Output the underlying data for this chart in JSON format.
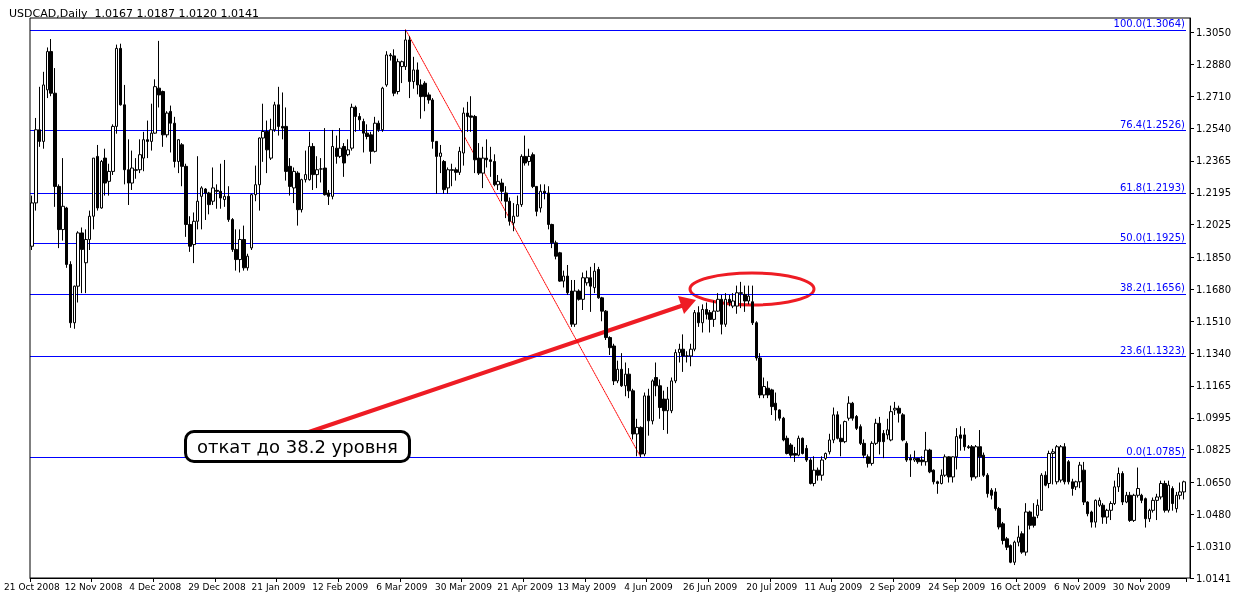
{
  "chart_data": {
    "type": "candlestick",
    "title": "USDCAD,Daily  1.0167 1.0187 1.0120 1.0141",
    "color": "#000000",
    "categories": [
      "21 Oct 2008",
      null,
      null,
      null,
      null,
      null,
      null,
      null,
      null,
      null,
      null,
      null,
      null,
      null,
      null,
      null,
      "12 Nov 2008",
      null,
      null,
      null,
      null,
      null,
      null,
      null,
      null,
      null,
      null,
      null,
      null,
      null,
      null,
      null,
      "4 Dec 2008",
      null,
      null,
      null,
      null,
      null,
      null,
      null,
      null,
      null,
      null,
      null,
      null,
      null,
      null,
      null,
      "29 Dec 2008",
      null,
      null,
      null,
      null,
      null,
      null,
      null,
      null,
      null,
      null,
      null,
      null,
      null,
      null,
      null,
      "21 Jan 2009",
      null,
      null,
      null,
      null,
      null,
      null,
      null,
      null,
      null,
      null,
      null,
      null,
      null,
      null,
      null,
      "12 Feb 2009",
      null,
      null,
      null,
      null,
      null,
      null,
      null,
      null,
      null,
      null,
      null,
      null,
      null,
      null,
      null,
      "6 Mar 2009",
      null,
      null,
      null,
      null,
      null,
      null,
      null,
      null,
      null,
      null,
      null,
      null,
      null,
      null,
      null,
      "30 Mar 2009",
      null,
      null,
      null,
      null,
      null,
      null,
      null,
      null,
      null,
      null,
      null,
      null,
      null,
      null,
      null,
      "21 Apr 2009",
      null,
      null,
      null,
      null,
      null,
      null,
      null,
      null,
      null,
      null,
      null,
      null,
      null,
      null,
      null,
      "13 May 2009",
      null,
      null,
      null,
      null,
      null,
      null,
      null,
      null,
      null,
      null,
      null,
      null,
      null,
      null,
      null,
      "4 Jun 2009",
      null,
      null,
      null,
      null,
      null,
      null,
      null,
      null,
      null,
      null,
      null,
      null,
      null,
      null,
      null,
      "26 Jun 2009",
      null,
      null,
      null,
      null,
      null,
      null,
      null,
      null,
      null,
      null,
      null,
      null,
      null,
      null,
      null,
      "20 Jul 2009",
      null,
      null,
      null,
      null,
      null,
      null,
      null,
      null,
      null,
      null,
      null,
      null,
      null,
      null,
      null,
      "11 Aug 2009",
      null,
      null,
      null,
      null,
      null,
      null,
      null,
      null,
      null,
      null,
      null,
      null,
      null,
      null,
      null,
      "2 Sep 2009",
      null,
      null,
      null,
      null,
      null,
      null,
      null,
      null,
      null,
      null,
      null,
      null,
      null,
      null,
      null,
      "24 Sep 2009",
      null,
      null,
      null,
      null,
      null,
      null,
      null,
      null,
      null,
      null,
      null,
      null,
      null,
      null,
      null,
      "16 Oct 2009",
      null,
      null,
      null,
      null,
      null,
      null,
      null,
      null,
      null,
      null,
      null,
      null,
      null,
      null,
      null,
      "6 Nov 2009",
      null,
      null,
      null,
      null,
      null,
      null,
      null,
      null,
      null,
      null,
      null,
      null,
      null,
      null,
      null,
      "30 Nov 2009",
      null,
      null,
      null,
      null,
      null,
      null,
      null,
      null,
      null,
      null,
      null
    ],
    "ohlc": [
      [
        1.191,
        1.218,
        1.189,
        1.2141
      ],
      [
        1.2141,
        1.2594,
        1.21,
        1.2531
      ],
      [
        1.2531,
        1.276,
        1.244,
        1.2469
      ],
      [
        1.2469,
        1.284,
        1.243,
        1.277
      ],
      [
        1.2744,
        1.297,
        1.27,
        1.2948
      ],
      [
        1.2948,
        1.3015,
        1.271,
        1.2726
      ],
      [
        1.2726,
        1.286,
        1.212,
        1.2229
      ],
      [
        1.2229,
        1.224,
        1.19,
        1.1999
      ],
      [
        1.1999,
        1.238,
        1.194,
        1.2123
      ],
      [
        1.2114,
        1.212,
        1.1795,
        1.1813
      ],
      [
        1.1813,
        1.183,
        1.1475,
        1.1502
      ],
      [
        1.1502,
        1.17,
        1.147,
        1.1697
      ],
      [
        1.1697,
        1.199,
        1.161,
        1.1981
      ],
      [
        1.1981,
        1.201,
        1.166,
        1.1893
      ],
      [
        1.1822,
        1.2,
        1.166,
        1.1946
      ],
      [
        1.1946,
        1.21,
        1.189,
        1.207
      ],
      [
        1.207,
        1.238,
        1.2,
        1.238
      ],
      [
        1.2389,
        1.245,
        1.21,
        1.2114
      ],
      [
        1.2114,
        1.237,
        1.211,
        1.2362
      ],
      [
        1.238,
        1.243,
        1.218,
        1.2247
      ],
      [
        1.2256,
        1.235,
        1.218,
        1.2309
      ],
      [
        1.2309,
        1.256,
        1.229,
        1.2549
      ],
      [
        1.2549,
        1.2985,
        1.251,
        1.2965
      ],
      [
        1.2965,
        1.299,
        1.266,
        1.2664
      ],
      [
        1.2664,
        1.277,
        1.224,
        1.2318
      ],
      [
        1.2318,
        1.248,
        1.213,
        1.2247
      ],
      [
        1.2247,
        1.242,
        1.221,
        1.2327
      ],
      [
        1.2318,
        1.238,
        1.227,
        1.2315
      ],
      [
        1.2318,
        1.248,
        1.23,
        1.2398
      ],
      [
        1.238,
        1.252,
        1.231,
        1.2478
      ],
      [
        1.2478,
        1.258,
        1.238,
        1.2469
      ],
      [
        1.2469,
        1.267,
        1.242,
        1.2513
      ],
      [
        1.2513,
        1.28,
        1.251,
        1.2761
      ],
      [
        1.2753,
        1.3005,
        1.265,
        1.2717
      ],
      [
        1.2735,
        1.274,
        1.244,
        1.2504
      ],
      [
        1.2504,
        1.263,
        1.249,
        1.262
      ],
      [
        1.2629,
        1.266,
        1.241,
        1.2566
      ],
      [
        1.2566,
        1.26,
        1.233,
        1.2362
      ],
      [
        1.2362,
        1.248,
        1.23,
        1.2478
      ],
      [
        1.2451,
        1.246,
        1.223,
        1.2336
      ],
      [
        1.2336,
        1.235,
        1.196,
        1.2026
      ],
      [
        1.2026,
        1.207,
        1.188,
        1.191
      ],
      [
        1.1919,
        1.209,
        1.182,
        1.2043
      ],
      [
        1.2043,
        1.239,
        1.2,
        1.215
      ],
      [
        1.2176,
        1.223,
        1.2,
        1.2221
      ],
      [
        1.2215,
        1.222,
        1.205,
        1.2194
      ],
      [
        1.2194,
        1.22,
        1.208,
        1.2132
      ],
      [
        1.215,
        1.233,
        1.213,
        1.2221
      ],
      [
        1.2208,
        1.224,
        1.211,
        1.2203
      ],
      [
        1.2203,
        1.235,
        1.211,
        1.2167
      ],
      [
        1.2159,
        1.237,
        1.212,
        1.2176
      ],
      [
        1.2176,
        1.223,
        1.204,
        1.2052
      ],
      [
        1.2052,
        1.206,
        1.188,
        1.1893
      ],
      [
        1.1893,
        1.2,
        1.178,
        1.1839
      ],
      [
        1.1839,
        1.2,
        1.177,
        1.1946
      ],
      [
        1.1946,
        1.202,
        1.178,
        1.1795
      ],
      [
        1.1795,
        1.187,
        1.178,
        1.1857
      ],
      [
        1.1901,
        1.219,
        1.189,
        1.2185
      ],
      [
        1.2185,
        1.234,
        1.215,
        1.2238
      ],
      [
        1.2238,
        1.249,
        1.21,
        1.2487
      ],
      [
        1.2487,
        1.267,
        1.236,
        1.2522
      ],
      [
        1.2522,
        1.258,
        1.23,
        1.2424
      ],
      [
        1.238,
        1.259,
        1.237,
        1.2531
      ],
      [
        1.2531,
        1.268,
        1.252,
        1.2664
      ],
      [
        1.2664,
        1.276,
        1.25,
        1.2549
      ],
      [
        1.2549,
        1.273,
        1.248,
        1.254
      ],
      [
        1.2549,
        1.265,
        1.226,
        1.2309
      ],
      [
        1.2336,
        1.238,
        1.218,
        1.2229
      ],
      [
        1.2221,
        1.233,
        1.214,
        1.2309
      ],
      [
        1.23,
        1.231,
        1.202,
        1.2105
      ],
      [
        1.2105,
        1.227,
        1.209,
        1.2265
      ],
      [
        1.2265,
        1.242,
        1.225,
        1.2292
      ],
      [
        1.2265,
        1.252,
        1.226,
        1.2442
      ],
      [
        1.2442,
        1.246,
        1.221,
        1.2292
      ],
      [
        1.2292,
        1.239,
        1.222,
        1.2318
      ],
      [
        1.2322,
        1.238,
        1.225,
        1.2322
      ],
      [
        1.2327,
        1.254,
        1.218,
        1.2185
      ],
      [
        1.2194,
        1.221,
        1.213,
        1.2176
      ],
      [
        1.2176,
        1.253,
        1.216,
        1.2442
      ],
      [
        1.2433,
        1.25,
        1.235,
        1.2389
      ],
      [
        1.2389,
        1.254,
        1.238,
        1.2433
      ],
      [
        1.2442,
        1.246,
        1.228,
        1.2354
      ],
      [
        1.2398,
        1.248,
        1.239,
        1.2424
      ],
      [
        1.2433,
        1.267,
        1.242,
        1.2651
      ],
      [
        1.2651,
        1.266,
        1.252,
        1.2602
      ],
      [
        1.2602,
        1.262,
        1.253,
        1.2584
      ],
      [
        1.2575,
        1.259,
        1.241,
        1.2513
      ],
      [
        1.2513,
        1.256,
        1.248,
        1.2495
      ],
      [
        1.2504,
        1.252,
        1.235,
        1.2416
      ],
      [
        1.2416,
        1.26,
        1.241,
        1.2566
      ],
      [
        1.2566,
        1.258,
        1.252,
        1.2531
      ],
      [
        1.2531,
        1.276,
        1.252,
        1.2753
      ],
      [
        1.277,
        1.295,
        1.276,
        1.293
      ],
      [
        1.293,
        1.294,
        1.29,
        1.2925
      ],
      [
        1.2925,
        1.296,
        1.271,
        1.2726
      ],
      [
        1.2735,
        1.291,
        1.272,
        1.2894
      ],
      [
        1.2868,
        1.29,
        1.278,
        1.2894
      ],
      [
        1.2868,
        1.3064,
        1.285,
        1.301
      ],
      [
        1.301,
        1.303,
        1.27,
        1.2788
      ],
      [
        1.2788,
        1.292,
        1.275,
        1.285
      ],
      [
        1.285,
        1.289,
        1.272,
        1.277
      ],
      [
        1.277,
        1.28,
        1.259,
        1.2708
      ],
      [
        1.2779,
        1.279,
        1.263,
        1.2708
      ],
      [
        1.2717,
        1.273,
        1.267,
        1.269
      ],
      [
        1.269,
        1.27,
        1.243,
        1.2469
      ],
      [
        1.2469,
        1.247,
        1.219,
        1.2389
      ],
      [
        1.2389,
        1.245,
        1.23,
        1.2407
      ],
      [
        1.2362,
        1.237,
        1.219,
        1.2212
      ],
      [
        1.2221,
        1.233,
        1.219,
        1.2318
      ],
      [
        1.2318,
        1.235,
        1.223,
        1.2315
      ],
      [
        1.2318,
        1.233,
        1.226,
        1.2304
      ],
      [
        1.2304,
        1.244,
        1.229,
        1.2416
      ],
      [
        1.2407,
        1.265,
        1.234,
        1.262
      ],
      [
        1.262,
        1.268,
        1.252,
        1.2602
      ],
      [
        1.2605,
        1.271,
        1.252,
        1.2598
      ],
      [
        1.2602,
        1.261,
        1.23,
        1.2371
      ],
      [
        1.238,
        1.246,
        1.229,
        1.23
      ],
      [
        1.23,
        1.244,
        1.222,
        1.238
      ],
      [
        1.238,
        1.248,
        1.233,
        1.2371
      ],
      [
        1.2371,
        1.244,
        1.228,
        1.2362
      ],
      [
        1.2362,
        1.24,
        1.223,
        1.2238
      ],
      [
        1.2238,
        1.229,
        1.221,
        1.2256
      ],
      [
        1.2247,
        1.227,
        1.215,
        1.2203
      ],
      [
        1.2194,
        1.223,
        1.206,
        1.215
      ],
      [
        1.215,
        1.217,
        1.202,
        1.2043
      ],
      [
        1.2034,
        1.214,
        1.199,
        1.207
      ],
      [
        1.207,
        1.218,
        1.207,
        1.2132
      ],
      [
        1.2132,
        1.24,
        1.212,
        1.2389
      ],
      [
        1.2389,
        1.25,
        1.234,
        1.2354
      ],
      [
        1.2362,
        1.243,
        1.234,
        1.2389
      ],
      [
        1.2398,
        1.241,
        1.222,
        1.2229
      ],
      [
        1.2229,
        1.223,
        1.207,
        1.2096
      ],
      [
        1.2114,
        1.224,
        1.209,
        1.2203
      ],
      [
        1.2203,
        1.224,
        1.216,
        1.2194
      ],
      [
        1.2194,
        1.223,
        1.2,
        1.2026
      ],
      [
        1.2026,
        1.203,
        1.19,
        1.1928
      ],
      [
        1.1928,
        1.194,
        1.184,
        1.1857
      ],
      [
        1.1875,
        1.188,
        1.172,
        1.1724
      ],
      [
        1.1724,
        1.178,
        1.169,
        1.1751
      ],
      [
        1.1751,
        1.181,
        1.165,
        1.1662
      ],
      [
        1.1671,
        1.173,
        1.148,
        1.1494
      ],
      [
        1.1494,
        1.173,
        1.148,
        1.1671
      ],
      [
        1.1671,
        1.168,
        1.162,
        1.1627
      ],
      [
        1.1627,
        1.177,
        1.157,
        1.1742
      ],
      [
        1.1715,
        1.178,
        1.17,
        1.1742
      ],
      [
        1.1742,
        1.18,
        1.156,
        1.1697
      ],
      [
        1.1689,
        1.182,
        1.166,
        1.1777
      ],
      [
        1.1786,
        1.18,
        1.163,
        1.1635
      ],
      [
        1.1635,
        1.164,
        1.151,
        1.1564
      ],
      [
        1.1564,
        1.157,
        1.141,
        1.1423
      ],
      [
        1.1423,
        1.143,
        1.133,
        1.1369
      ],
      [
        1.1378,
        1.139,
        1.117,
        1.1192
      ],
      [
        1.1192,
        1.13,
        1.118,
        1.1254
      ],
      [
        1.1254,
        1.134,
        1.116,
        1.1166
      ],
      [
        1.1166,
        1.129,
        1.111,
        1.1228
      ],
      [
        1.1228,
        1.126,
        1.11,
        1.1139
      ],
      [
        1.1139,
        1.115,
        1.088,
        1.0909
      ],
      [
        1.0909,
        1.099,
        1.079,
        1.0944
      ],
      [
        1.0944,
        1.095,
        1.0785,
        1.0802
      ],
      [
        1.0802,
        1.113,
        1.079,
        1.1112
      ],
      [
        1.1112,
        1.115,
        1.09,
        1.0979
      ],
      [
        1.0979,
        1.12,
        1.096,
        1.1192
      ],
      [
        1.121,
        1.129,
        1.111,
        1.1166
      ],
      [
        1.1166,
        1.12,
        1.099,
        1.105
      ],
      [
        1.1095,
        1.114,
        1.093,
        1.1033
      ],
      [
        1.1033,
        1.116,
        1.091,
        1.1095
      ],
      [
        1.1033,
        1.121,
        1.102,
        1.1192
      ],
      [
        1.1192,
        1.136,
        1.118,
        1.1343
      ],
      [
        1.1343,
        1.139,
        1.129,
        1.1361
      ],
      [
        1.1361,
        1.144,
        1.124,
        1.1325
      ],
      [
        1.1325,
        1.135,
        1.129,
        1.1325
      ],
      [
        1.1325,
        1.139,
        1.127,
        1.1361
      ],
      [
        1.1361,
        1.157,
        1.135,
        1.1556
      ],
      [
        1.1556,
        1.159,
        1.148,
        1.1502
      ],
      [
        1.1502,
        1.16,
        1.145,
        1.1573
      ],
      [
        1.1573,
        1.161,
        1.152,
        1.1547
      ],
      [
        1.1556,
        1.157,
        1.145,
        1.152
      ],
      [
        1.152,
        1.162,
        1.148,
        1.1564
      ],
      [
        1.1564,
        1.166,
        1.156,
        1.1627
      ],
      [
        1.1627,
        1.165,
        1.144,
        1.1494
      ],
      [
        1.1494,
        1.166,
        1.148,
        1.1627
      ],
      [
        1.1627,
        1.165,
        1.159,
        1.1609
      ],
      [
        1.1591,
        1.166,
        1.158,
        1.1618
      ],
      [
        1.1591,
        1.17,
        1.155,
        1.1662
      ],
      [
        1.1662,
        1.172,
        1.158,
        1.1659
      ],
      [
        1.1653,
        1.17,
        1.156,
        1.1618
      ],
      [
        1.1618,
        1.17,
        1.16,
        1.1644
      ],
      [
        1.1614,
        1.17,
        1.149,
        1.1502
      ],
      [
        1.1502,
        1.151,
        1.13,
        1.1314
      ],
      [
        1.1314,
        1.134,
        1.11,
        1.1117
      ],
      [
        1.1117,
        1.121,
        1.11,
        1.1162
      ],
      [
        1.1153,
        1.119,
        1.11,
        1.1117
      ],
      [
        1.1144,
        1.115,
        1.101,
        1.1055
      ],
      [
        1.1073,
        1.113,
        1.098,
        1.1037
      ],
      [
        1.1037,
        1.104,
        1.098,
        1.0993
      ],
      [
        1.0993,
        1.1,
        1.087,
        1.0877
      ],
      [
        1.0886,
        1.09,
        1.08,
        1.0805
      ],
      [
        1.085,
        1.086,
        1.078,
        1.0796
      ],
      [
        1.0805,
        1.084,
        1.076,
        1.0796
      ],
      [
        1.0796,
        1.09,
        1.079,
        1.0886
      ],
      [
        1.0886,
        1.089,
        1.08,
        1.0805
      ],
      [
        1.0832,
        1.085,
        1.076,
        1.077
      ],
      [
        1.077,
        1.078,
        1.064,
        1.0645
      ],
      [
        1.0645,
        1.079,
        1.063,
        1.0716
      ],
      [
        1.0716,
        1.073,
        1.066,
        1.0689
      ],
      [
        1.0689,
        1.079,
        1.066,
        1.077
      ],
      [
        1.0779,
        1.081,
        1.077,
        1.0805
      ],
      [
        1.0814,
        1.091,
        1.08,
        1.0877
      ],
      [
        1.0877,
        1.105,
        1.086,
        1.1011
      ],
      [
        1.1011,
        1.103,
        1.088,
        1.0886
      ],
      [
        1.0886,
        1.096,
        1.079,
        1.0868
      ],
      [
        1.0868,
        1.098,
        1.086,
        1.0975
      ],
      [
        1.0993,
        1.111,
        1.098,
        1.1073
      ],
      [
        1.1073,
        1.108,
        1.098,
        1.0993
      ],
      [
        1.1002,
        1.101,
        1.093,
        1.0939
      ],
      [
        1.0948,
        1.096,
        1.085,
        1.0859
      ],
      [
        1.0859,
        1.088,
        1.078,
        1.0796
      ],
      [
        1.0787,
        1.08,
        1.073,
        1.0752
      ],
      [
        1.0752,
        1.087,
        1.074,
        1.0859
      ],
      [
        1.0859,
        1.099,
        1.085,
        1.0966
      ],
      [
        1.0966,
        1.1,
        1.08,
        1.0868
      ],
      [
        1.0912,
        1.093,
        1.078,
        1.0868
      ],
      [
        1.0904,
        1.099,
        1.088,
        1.0931
      ],
      [
        1.0877,
        1.106,
        1.087,
        1.1028
      ],
      [
        1.1037,
        1.108,
        1.101,
        1.1046
      ],
      [
        1.1046,
        1.106,
        1.097,
        1.102
      ],
      [
        1.1011,
        1.102,
        1.087,
        1.0877
      ],
      [
        1.0859,
        1.087,
        1.076,
        1.077
      ],
      [
        1.0779,
        1.08,
        1.068,
        1.077
      ],
      [
        1.077,
        1.082,
        1.076,
        1.0779
      ],
      [
        1.0779,
        1.078,
        1.075,
        1.0761
      ],
      [
        1.077,
        1.079,
        1.074,
        1.0761
      ],
      [
        1.0761,
        1.092,
        1.074,
        1.0823
      ],
      [
        1.0823,
        1.083,
        1.07,
        1.0707
      ],
      [
        1.0716,
        1.072,
        1.064,
        1.0654
      ],
      [
        1.0654,
        1.066,
        1.059,
        1.0645
      ],
      [
        1.0645,
        1.072,
        1.064,
        1.0689
      ],
      [
        1.0689,
        1.08,
        1.068,
        1.0787
      ],
      [
        1.0787,
        1.079,
        1.065,
        1.068
      ],
      [
        1.068,
        1.079,
        1.065,
        1.0787
      ],
      [
        1.0787,
        1.094,
        1.072,
        1.0895
      ],
      [
        1.0904,
        1.095,
        1.082,
        1.0886
      ],
      [
        1.0904,
        1.094,
        1.082,
        1.0841
      ],
      [
        1.0841,
        1.085,
        1.083,
        1.0836
      ],
      [
        1.0841,
        1.085,
        1.066,
        1.068
      ],
      [
        1.068,
        1.085,
        1.067,
        1.0841
      ],
      [
        1.0841,
        1.093,
        1.068,
        1.0787
      ],
      [
        1.0796,
        1.081,
        1.068,
        1.0689
      ],
      [
        1.0689,
        1.07,
        1.057,
        1.0591
      ],
      [
        1.0609,
        1.062,
        1.056,
        1.0582
      ],
      [
        1.06,
        1.062,
        1.05,
        1.0511
      ],
      [
        1.0511,
        1.052,
        1.04,
        1.0413
      ],
      [
        1.043,
        1.044,
        1.032,
        1.0341
      ],
      [
        1.035,
        1.036,
        1.029,
        1.0305
      ],
      [
        1.0314,
        1.032,
        1.022,
        1.0225
      ],
      [
        1.0225,
        1.034,
        1.021,
        1.0332
      ],
      [
        1.0332,
        1.042,
        1.031,
        1.0359
      ],
      [
        1.0377,
        1.039,
        1.027,
        1.0279
      ],
      [
        1.0279,
        1.054,
        1.026,
        1.0493
      ],
      [
        1.0493,
        1.05,
        1.04,
        1.0422
      ],
      [
        1.0466,
        1.054,
        1.041,
        1.0422
      ],
      [
        1.0475,
        1.056,
        1.046,
        1.0529
      ],
      [
        1.0502,
        1.07,
        1.05,
        1.0689
      ],
      [
        1.0689,
        1.071,
        1.063,
        1.0636
      ],
      [
        1.0645,
        1.082,
        1.062,
        1.0805
      ],
      [
        1.0805,
        1.083,
        1.064,
        1.0814
      ],
      [
        1.0654,
        1.085,
        1.064,
        1.0841
      ],
      [
        1.0663,
        1.085,
        1.065,
        1.0841
      ],
      [
        1.0841,
        1.086,
        1.064,
        1.0654
      ],
      [
        1.0761,
        1.077,
        1.064,
        1.0654
      ],
      [
        1.0654,
        1.067,
        1.058,
        1.0618
      ],
      [
        1.0627,
        1.066,
        1.061,
        1.0654
      ],
      [
        1.0654,
        1.076,
        1.062,
        1.0743
      ],
      [
        1.0716,
        1.076,
        1.053,
        1.0546
      ],
      [
        1.0546,
        1.055,
        1.047,
        1.0484
      ],
      [
        1.0493,
        1.05,
        1.041,
        1.0439
      ],
      [
        1.0439,
        1.056,
        1.041,
        1.0555
      ],
      [
        1.0529,
        1.057,
        1.052,
        1.0555
      ],
      [
        1.0529,
        1.054,
        1.043,
        1.0466
      ],
      [
        1.0466,
        1.051,
        1.043,
        1.0502
      ],
      [
        1.0502,
        1.055,
        1.045,
        1.0538
      ],
      [
        1.0538,
        1.066,
        1.053,
        1.0627
      ],
      [
        1.0627,
        1.073,
        1.06,
        1.0698
      ],
      [
        1.0698,
        1.071,
        1.053,
        1.0546
      ],
      [
        1.0546,
        1.06,
        1.054,
        1.0582
      ],
      [
        1.0582,
        1.06,
        1.044,
        1.0448
      ],
      [
        1.0448,
        1.059,
        1.044,
        1.0582
      ],
      [
        1.0582,
        1.073,
        1.057,
        1.0618
      ],
      [
        1.0582,
        1.059,
        1.054,
        1.0555
      ],
      [
        1.0564,
        1.057,
        1.041,
        1.0457
      ],
      [
        1.0457,
        1.051,
        1.044,
        1.0502
      ],
      [
        1.0502,
        1.057,
        1.049,
        1.0555
      ],
      [
        1.0555,
        1.059,
        1.045,
        1.0573
      ],
      [
        1.0573,
        1.066,
        1.056,
        1.0645
      ],
      [
        1.0645,
        1.066,
        1.049,
        1.0502
      ],
      [
        1.0502,
        1.066,
        1.049,
        1.0636
      ],
      [
        1.0618,
        1.063,
        1.05,
        1.0538
      ],
      [
        1.0511,
        1.06,
        1.049,
        1.0582
      ],
      [
        1.0582,
        1.065,
        1.056,
        1.06
      ],
      [
        1.06,
        1.066,
        1.056,
        1.0654
      ]
    ],
    "series": [
      {
        "type": "line",
        "color": "#ff0000",
        "line_style": "dotted",
        "values": [
          null,
          null,
          null,
          null,
          null,
          null,
          null,
          null,
          null,
          null,
          null,
          null,
          null,
          null,
          null,
          null,
          null,
          null,
          null,
          null,
          null,
          null,
          null,
          null,
          null,
          null,
          null,
          null,
          null,
          null,
          null,
          null,
          null,
          null,
          null,
          null,
          null,
          null,
          null,
          null,
          null,
          null,
          null,
          null,
          null,
          null,
          null,
          null,
          null,
          null,
          null,
          null,
          null,
          null,
          null,
          null,
          null,
          null,
          null,
          null,
          null,
          null,
          null,
          null,
          null,
          null,
          null,
          null,
          null,
          null,
          null,
          null,
          null,
          null,
          null,
          null,
          null,
          null,
          null,
          null,
          null,
          null,
          null,
          null,
          null,
          null,
          null,
          null,
          null,
          null,
          null,
          null,
          null,
          null,
          null,
          null,
          null,
          1.3064,
          null,
          null,
          null,
          null,
          null,
          null,
          null,
          null,
          null,
          null,
          null,
          null,
          null,
          null,
          null,
          null,
          null,
          null,
          null,
          null,
          null,
          null,
          null,
          null,
          null,
          null,
          null,
          null,
          null,
          null,
          null,
          null,
          null,
          null,
          null,
          null,
          null,
          null,
          null,
          null,
          null,
          null,
          null,
          null,
          null,
          null,
          null,
          null,
          null,
          null,
          null,
          null,
          null,
          null,
          null,
          null,
          null,
          null,
          null,
          null,
          1.0785,
          null,
          null,
          null,
          null,
          null,
          null,
          null,
          null,
          null,
          null,
          null,
          null,
          null,
          null,
          null,
          null,
          null,
          null,
          null,
          null,
          null,
          null,
          null,
          null,
          null,
          null,
          null,
          null,
          null,
          null,
          null,
          null,
          null,
          null,
          null,
          null,
          null,
          null,
          null,
          null,
          null,
          null,
          null,
          null,
          null,
          null,
          null,
          null,
          null,
          null,
          null,
          null,
          null,
          null,
          null,
          null,
          null,
          null,
          null,
          null,
          null,
          null,
          null,
          null,
          null,
          null,
          null,
          null,
          null,
          null,
          null,
          null,
          null,
          null,
          null,
          null,
          null,
          null,
          null,
          null,
          null,
          null,
          null,
          null,
          null,
          null,
          null,
          null,
          null,
          null,
          null,
          null,
          null,
          null,
          null,
          null,
          null,
          null,
          null,
          null,
          null,
          null,
          null,
          null,
          null,
          null,
          null,
          null,
          null,
          null,
          null,
          null,
          null,
          null,
          null,
          null,
          null,
          null,
          null,
          null,
          null,
          null,
          null,
          null,
          null,
          null,
          null,
          null,
          null,
          null,
          null,
          null,
          null,
          null,
          null,
          null,
          null,
          null,
          null,
          null,
          null
        ]
      }
    ],
    "ylim": [
      1.0141,
      1.3127
    ],
    "yticks": [
      {
        "value": 1.305,
        "label": "1.3050"
      },
      {
        "value": 1.288,
        "label": "1.2880"
      },
      {
        "value": 1.271,
        "label": "1.2710"
      },
      {
        "value": 1.254,
        "label": "1.2540"
      },
      {
        "value": 1.2365,
        "label": "1.2365"
      },
      {
        "value": 1.2195,
        "label": "1.2195"
      },
      {
        "value": 1.2025,
        "label": "1.2025"
      },
      {
        "value": 1.185,
        "label": "1.1850"
      },
      {
        "value": 1.168,
        "label": "1.1680"
      },
      {
        "value": 1.151,
        "label": "1.1510"
      },
      {
        "value": 1.134,
        "label": "1.1340"
      },
      {
        "value": 1.1165,
        "label": "1.1165"
      },
      {
        "value": 1.0995,
        "label": "1.0995"
      },
      {
        "value": 1.0825,
        "label": "1.0825"
      },
      {
        "value": 1.065,
        "label": "1.0650"
      },
      {
        "value": 1.048,
        "label": "1.0480"
      },
      {
        "value": 1.031,
        "label": "1.0310"
      },
      1.0141
    ],
    "ref_lines": [
      {
        "axis": "y",
        "value": 1.3064,
        "label": "100.0(1.3064)",
        "color": "#0000ff"
      },
      {
        "axis": "y",
        "value": 1.2526,
        "label": "76.4(1.2526)",
        "color": "#0000ff"
      },
      {
        "axis": "y",
        "value": 1.2193,
        "label": "61.8(1.2193)",
        "color": "#0000ff"
      },
      {
        "axis": "y",
        "value": 1.1925,
        "label": "50.0(1.1925)",
        "color": "#0000ff"
      },
      {
        "axis": "y",
        "value": 1.1656,
        "label": "38.2(1.1656)",
        "color": "#0000ff"
      },
      {
        "axis": "y",
        "value": 1.1323,
        "label": "23.6(1.1323)",
        "color": "#0000ff"
      },
      {
        "axis": "y",
        "value": 1.0785,
        "label": "0.0(1.0785)",
        "color": "#0000ff"
      }
    ],
    "annotations": [
      "откат до 38.2 уровня"
    ],
    "grid": false
  }
}
